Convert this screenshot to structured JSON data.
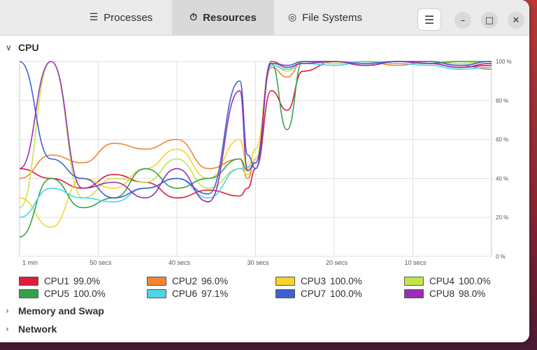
{
  "tabs": [
    {
      "label": "Processes",
      "icon": "list-icon",
      "glyph": "☰"
    },
    {
      "label": "Resources",
      "icon": "gauge-icon",
      "glyph": "⏱"
    },
    {
      "label": "File Systems",
      "icon": "disk-icon",
      "glyph": "◎"
    }
  ],
  "menu_glyph": "☰",
  "window_controls": {
    "minimize": "–",
    "maximize": "□",
    "close": "✕"
  },
  "sections": {
    "cpu": {
      "label": "CPU",
      "chevron": "∨"
    },
    "memory": {
      "label": "Memory and Swap",
      "chevron": "›"
    },
    "network": {
      "label": "Network",
      "chevron": "›"
    }
  },
  "chart_data": {
    "type": "line",
    "x_tick_labels": [
      "1 min",
      "50 secs",
      "40 secs",
      "30 secs",
      "20 secs",
      "10 secs"
    ],
    "y_tick_labels": [
      "100 %",
      "80 %",
      "60 %",
      "40 %",
      "20 %",
      "0 %"
    ],
    "x_unit": "seconds ago",
    "xlim": [
      60,
      0
    ],
    "ylim": [
      0,
      100
    ],
    "grid": true,
    "legend_position": "bottom",
    "series": [
      {
        "name": "CPU1",
        "value_label": "99.0%",
        "color": "#e01b3c",
        "x": [
          60,
          56,
          52,
          48,
          44,
          40,
          36,
          32,
          31,
          30,
          28,
          26,
          24,
          20,
          16,
          12,
          8,
          4,
          0
        ],
        "y": [
          45,
          40,
          35,
          42,
          38,
          30,
          34,
          31,
          35,
          45,
          85,
          75,
          95,
          100,
          98,
          100,
          99,
          97,
          99
        ]
      },
      {
        "name": "CPU2",
        "value_label": "96.0%",
        "color": "#f28534",
        "x": [
          60,
          56,
          52,
          48,
          44,
          40,
          36,
          32,
          31,
          30,
          28,
          26,
          24,
          20,
          16,
          12,
          8,
          4,
          0
        ],
        "y": [
          40,
          52,
          48,
          58,
          55,
          60,
          45,
          50,
          40,
          50,
          97,
          92,
          100,
          99,
          100,
          98,
          100,
          98,
          96
        ]
      },
      {
        "name": "CPU3",
        "value_label": "100.0%",
        "color": "#f6d32d",
        "x": [
          60,
          56,
          52,
          48,
          44,
          40,
          36,
          32,
          31,
          30,
          28,
          26,
          24,
          20,
          16,
          12,
          8,
          4,
          0
        ],
        "y": [
          30,
          15,
          40,
          35,
          45,
          55,
          40,
          60,
          45,
          55,
          100,
          98,
          100,
          100,
          99,
          100,
          100,
          100,
          100
        ]
      },
      {
        "name": "CPU4",
        "value_label": "100.0%",
        "color": "#c0e64b",
        "x": [
          60,
          56,
          52,
          48,
          44,
          40,
          36,
          32,
          31,
          30,
          28,
          26,
          24,
          20,
          16,
          12,
          8,
          4,
          0
        ],
        "y": [
          25,
          100,
          30,
          40,
          38,
          50,
          35,
          45,
          42,
          50,
          100,
          95,
          100,
          99,
          100,
          100,
          100,
          99,
          100
        ]
      },
      {
        "name": "CPU5",
        "value_label": "100.0%",
        "color": "#33a34a",
        "x": [
          60,
          56,
          52,
          48,
          44,
          40,
          36,
          32,
          31,
          30,
          28,
          26,
          24,
          20,
          16,
          12,
          8,
          4,
          0
        ],
        "y": [
          10,
          40,
          25,
          30,
          45,
          35,
          40,
          50,
          44,
          48,
          99,
          65,
          100,
          100,
          98,
          100,
          99,
          100,
          100
        ]
      },
      {
        "name": "CPU6",
        "value_label": "97.1%",
        "color": "#4ed3e8",
        "x": [
          60,
          56,
          52,
          48,
          44,
          40,
          36,
          32,
          31,
          30,
          28,
          26,
          24,
          20,
          16,
          12,
          8,
          4,
          0
        ],
        "y": [
          20,
          35,
          30,
          28,
          35,
          40,
          30,
          45,
          46,
          48,
          98,
          96,
          99,
          98,
          100,
          99,
          98,
          96,
          97
        ]
      },
      {
        "name": "CPU7",
        "value_label": "100.0%",
        "color": "#4060d0",
        "x": [
          60,
          56,
          52,
          48,
          44,
          40,
          36,
          32,
          31,
          30,
          28,
          26,
          24,
          20,
          16,
          12,
          8,
          4,
          0
        ],
        "y": [
          100,
          50,
          40,
          30,
          35,
          40,
          32,
          90,
          52,
          45,
          99,
          98,
          100,
          100,
          99,
          100,
          100,
          98,
          100
        ]
      },
      {
        "name": "CPU8",
        "value_label": "98.0%",
        "color": "#9a2db6",
        "x": [
          60,
          56,
          52,
          48,
          44,
          40,
          36,
          32,
          31,
          30,
          28,
          26,
          24,
          20,
          16,
          12,
          8,
          4,
          0
        ],
        "y": [
          45,
          100,
          35,
          38,
          30,
          45,
          28,
          85,
          44,
          48,
          100,
          97,
          99,
          100,
          98,
          100,
          99,
          97,
          98
        ]
      }
    ]
  }
}
